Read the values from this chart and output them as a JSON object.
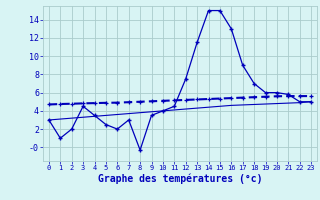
{
  "hours": [
    0,
    1,
    2,
    3,
    4,
    5,
    6,
    7,
    8,
    9,
    10,
    11,
    12,
    13,
    14,
    15,
    16,
    17,
    18,
    19,
    20,
    21,
    22,
    23
  ],
  "temp": [
    3.0,
    1.0,
    2.0,
    4.5,
    3.5,
    2.5,
    2.0,
    3.0,
    -0.3,
    3.5,
    4.0,
    4.5,
    7.5,
    11.5,
    15.0,
    15.0,
    13.0,
    9.0,
    7.0,
    6.0,
    6.0,
    5.8,
    5.0,
    5.0
  ],
  "line2": [
    4.7,
    4.75,
    4.78,
    4.82,
    4.85,
    4.88,
    4.9,
    4.95,
    5.0,
    5.05,
    5.1,
    5.15,
    5.2,
    5.25,
    5.3,
    5.35,
    5.4,
    5.45,
    5.5,
    5.55,
    5.6,
    5.62,
    5.62,
    5.62
  ],
  "line3": [
    3.0,
    3.1,
    3.2,
    3.3,
    3.4,
    3.5,
    3.6,
    3.7,
    3.8,
    3.9,
    4.0,
    4.1,
    4.2,
    4.3,
    4.4,
    4.5,
    4.6,
    4.65,
    4.7,
    4.75,
    4.8,
    4.85,
    4.9,
    5.0
  ],
  "line_color": "#0000bb",
  "bg_color": "#d8f4f4",
  "grid_color": "#aacccc",
  "xlabel": "Graphe des températures (°c)",
  "ylim": [
    -1.5,
    15.5
  ],
  "xlim_min": -0.5,
  "xlim_max": 23.5,
  "yticks": [
    0,
    2,
    4,
    6,
    8,
    10,
    12,
    14
  ],
  "ytick_labels": [
    "-0",
    "2",
    "4",
    "6",
    "8",
    "10",
    "12",
    "14"
  ],
  "xtick_labels": [
    "0",
    "1",
    "2",
    "3",
    "4",
    "5",
    "6",
    "7",
    "8",
    "9",
    "10",
    "11",
    "12",
    "13",
    "14",
    "15",
    "16",
    "17",
    "18",
    "19",
    "20",
    "21",
    "22",
    "23"
  ]
}
